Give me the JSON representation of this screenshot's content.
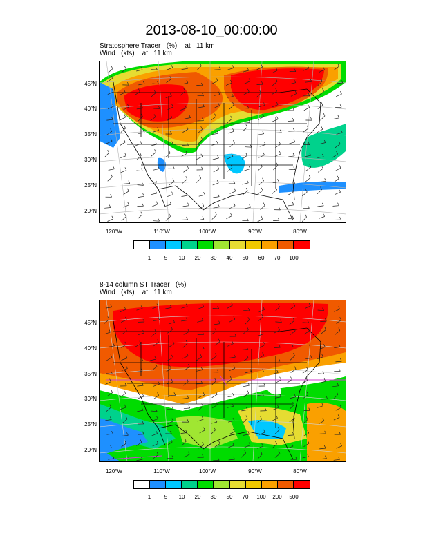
{
  "title": "2013-08-10_00:00:00",
  "panels": [
    {
      "line1": "Stratosphere Tracer   (%)    at   11 km",
      "line2": "Wind   (kts)    at   11 km",
      "lat_labels": [
        "45°N",
        "40°N",
        "35°N",
        "30°N",
        "25°N",
        "20°N"
      ],
      "lon_labels": [
        "120°W",
        "110°W",
        "100°W",
        "90°W",
        "80°W"
      ],
      "colorbar_labels": [
        "1",
        "5",
        "10",
        "20",
        "30",
        "40",
        "50",
        "60",
        "70",
        "100"
      ]
    },
    {
      "line1": "8-14 column ST Tracer   (%)",
      "line2": "Wind   (kts)    at   11 km",
      "lat_labels": [
        "45°N",
        "40°N",
        "35°N",
        "30°N",
        "25°N",
        "20°N"
      ],
      "lon_labels": [
        "120°W",
        "110°W",
        "100°W",
        "90°W",
        "80°W"
      ],
      "colorbar_labels": [
        "1",
        "5",
        "10",
        "20",
        "30",
        "50",
        "70",
        "100",
        "200",
        "500"
      ]
    }
  ],
  "colors": {
    "palette": [
      "#ffffff",
      "#1e90ff",
      "#00c8ff",
      "#00d28c",
      "#00dc00",
      "#a0e632",
      "#e6dc32",
      "#f0c800",
      "#faa000",
      "#f05a00",
      "#ff0000"
    ]
  }
}
